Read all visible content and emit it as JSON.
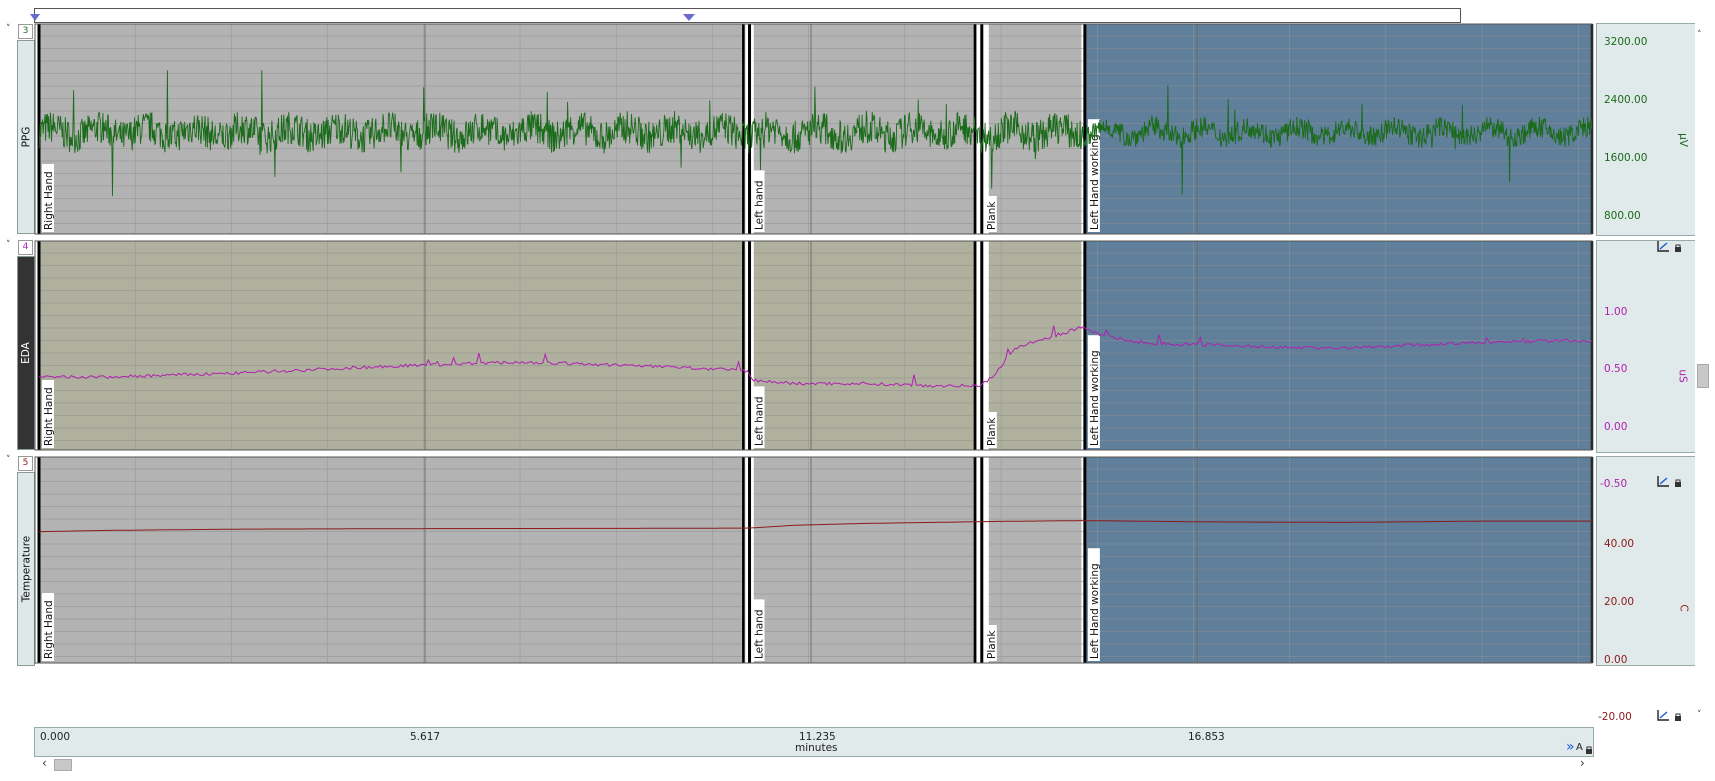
{
  "window": {
    "scroll_left_arrow": "‹",
    "scroll_right_arrow": "›",
    "collapse_glyph": "˅",
    "scroll_down_glyph": "˅",
    "double_arrow": "»",
    "auto_label": "A"
  },
  "chart_data": {
    "type": "line",
    "x_unit": "minutes",
    "x_range": [
      0,
      22.6
    ],
    "x_ticks": [
      "0.000",
      "5.617",
      "11.235",
      "16.853"
    ],
    "x_tick_values": [
      0,
      5.617,
      11.235,
      16.853
    ],
    "events": [
      {
        "label": "Right Hand",
        "x": 0.0
      },
      {
        "label": "Left hand",
        "x": 10.34
      },
      {
        "label": "Plank",
        "x": 13.72
      },
      {
        "label": "Left Hand working",
        "x": 15.22
      }
    ],
    "segments": [
      {
        "from": 0.0,
        "to": 10.28,
        "shade": "gray"
      },
      {
        "from": 10.4,
        "to": 13.65,
        "shade": "gray"
      },
      {
        "from": 13.82,
        "to": 15.17,
        "shade": "gray"
      },
      {
        "from": 15.22,
        "to": 22.6,
        "shade": "blue"
      }
    ],
    "series": [
      {
        "number": "3",
        "name": "PPG",
        "unit": "µV",
        "color": "#1a6b1a",
        "ylim": [
          200,
          3500
        ],
        "y_ticks": [
          "3200.00",
          "2400.00",
          "1600.00",
          "800.00"
        ],
        "y_tick_values": [
          3200,
          2400,
          1600,
          800
        ],
        "baseline": 1800,
        "noise": "high"
      },
      {
        "number": "4",
        "name": "EDA",
        "unit": "uS",
        "color": "#b020b0",
        "ylim": [
          -0.5,
          1.45
        ],
        "y_ticks": [
          "1.00",
          "0.50",
          "0.00",
          "-0.50"
        ],
        "y_tick_values": [
          1.0,
          0.5,
          0.0,
          -0.5
        ],
        "points": [
          [
            0,
            0.18
          ],
          [
            1,
            0.18
          ],
          [
            2,
            0.2
          ],
          [
            3,
            0.22
          ],
          [
            4,
            0.25
          ],
          [
            5,
            0.28
          ],
          [
            6,
            0.3
          ],
          [
            7,
            0.32
          ],
          [
            8,
            0.3
          ],
          [
            9,
            0.28
          ],
          [
            10.28,
            0.24
          ],
          [
            10.4,
            0.15
          ],
          [
            11,
            0.12
          ],
          [
            12,
            0.12
          ],
          [
            13,
            0.1
          ],
          [
            13.7,
            0.1
          ],
          [
            13.9,
            0.2
          ],
          [
            14.2,
            0.45
          ],
          [
            14.8,
            0.57
          ],
          [
            15.2,
            0.65
          ],
          [
            15.3,
            0.6
          ],
          [
            16,
            0.5
          ],
          [
            17,
            0.48
          ],
          [
            18,
            0.46
          ],
          [
            19,
            0.45
          ],
          [
            20,
            0.48
          ],
          [
            21,
            0.5
          ],
          [
            22,
            0.52
          ],
          [
            22.6,
            0.52
          ]
        ]
      },
      {
        "number": "5",
        "name": "Temperature",
        "unit": "C",
        "color": "#8b1a1a",
        "ylim": [
          -22,
          58
        ],
        "y_ticks": [
          "40.00",
          "20.00",
          "0.00",
          "-20.00"
        ],
        "y_tick_values": [
          40,
          20,
          0,
          -20
        ],
        "points": [
          [
            0,
            29
          ],
          [
            1,
            29.5
          ],
          [
            3,
            30
          ],
          [
            6,
            30.2
          ],
          [
            9,
            30.3
          ],
          [
            10.28,
            30.4
          ],
          [
            10.4,
            30.5
          ],
          [
            11,
            31.5
          ],
          [
            12,
            32.2
          ],
          [
            13,
            32.6
          ],
          [
            14,
            33.0
          ],
          [
            15.2,
            33.3
          ],
          [
            17,
            32.8
          ],
          [
            19,
            32.6
          ],
          [
            21,
            33.1
          ],
          [
            22.6,
            33.1
          ]
        ]
      }
    ]
  }
}
